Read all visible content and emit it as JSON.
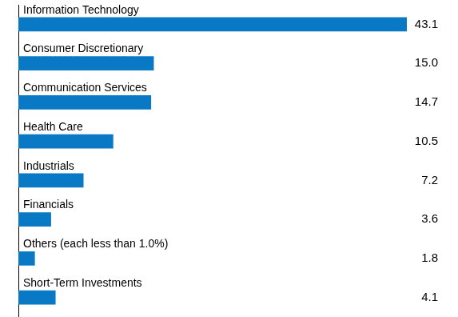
{
  "chart_data": {
    "type": "bar",
    "orientation": "horizontal",
    "categories": [
      "Information Technology",
      "Consumer Discretionary",
      "Communication Services",
      "Health Care",
      "Industrials",
      "Financials",
      "Others (each less than 1.0%)",
      "Short-Term Investments"
    ],
    "values": [
      43.1,
      15.0,
      14.7,
      10.5,
      7.2,
      3.6,
      1.8,
      4.1
    ],
    "value_labels": [
      "43.1",
      "15.0",
      "14.7",
      "10.5",
      "7.2",
      "3.6",
      "1.8",
      "4.1"
    ],
    "color": "#0a79c5",
    "xlim": [
      0,
      43.1
    ],
    "grid": false,
    "data_labels": true,
    "tick_labels": false
  }
}
